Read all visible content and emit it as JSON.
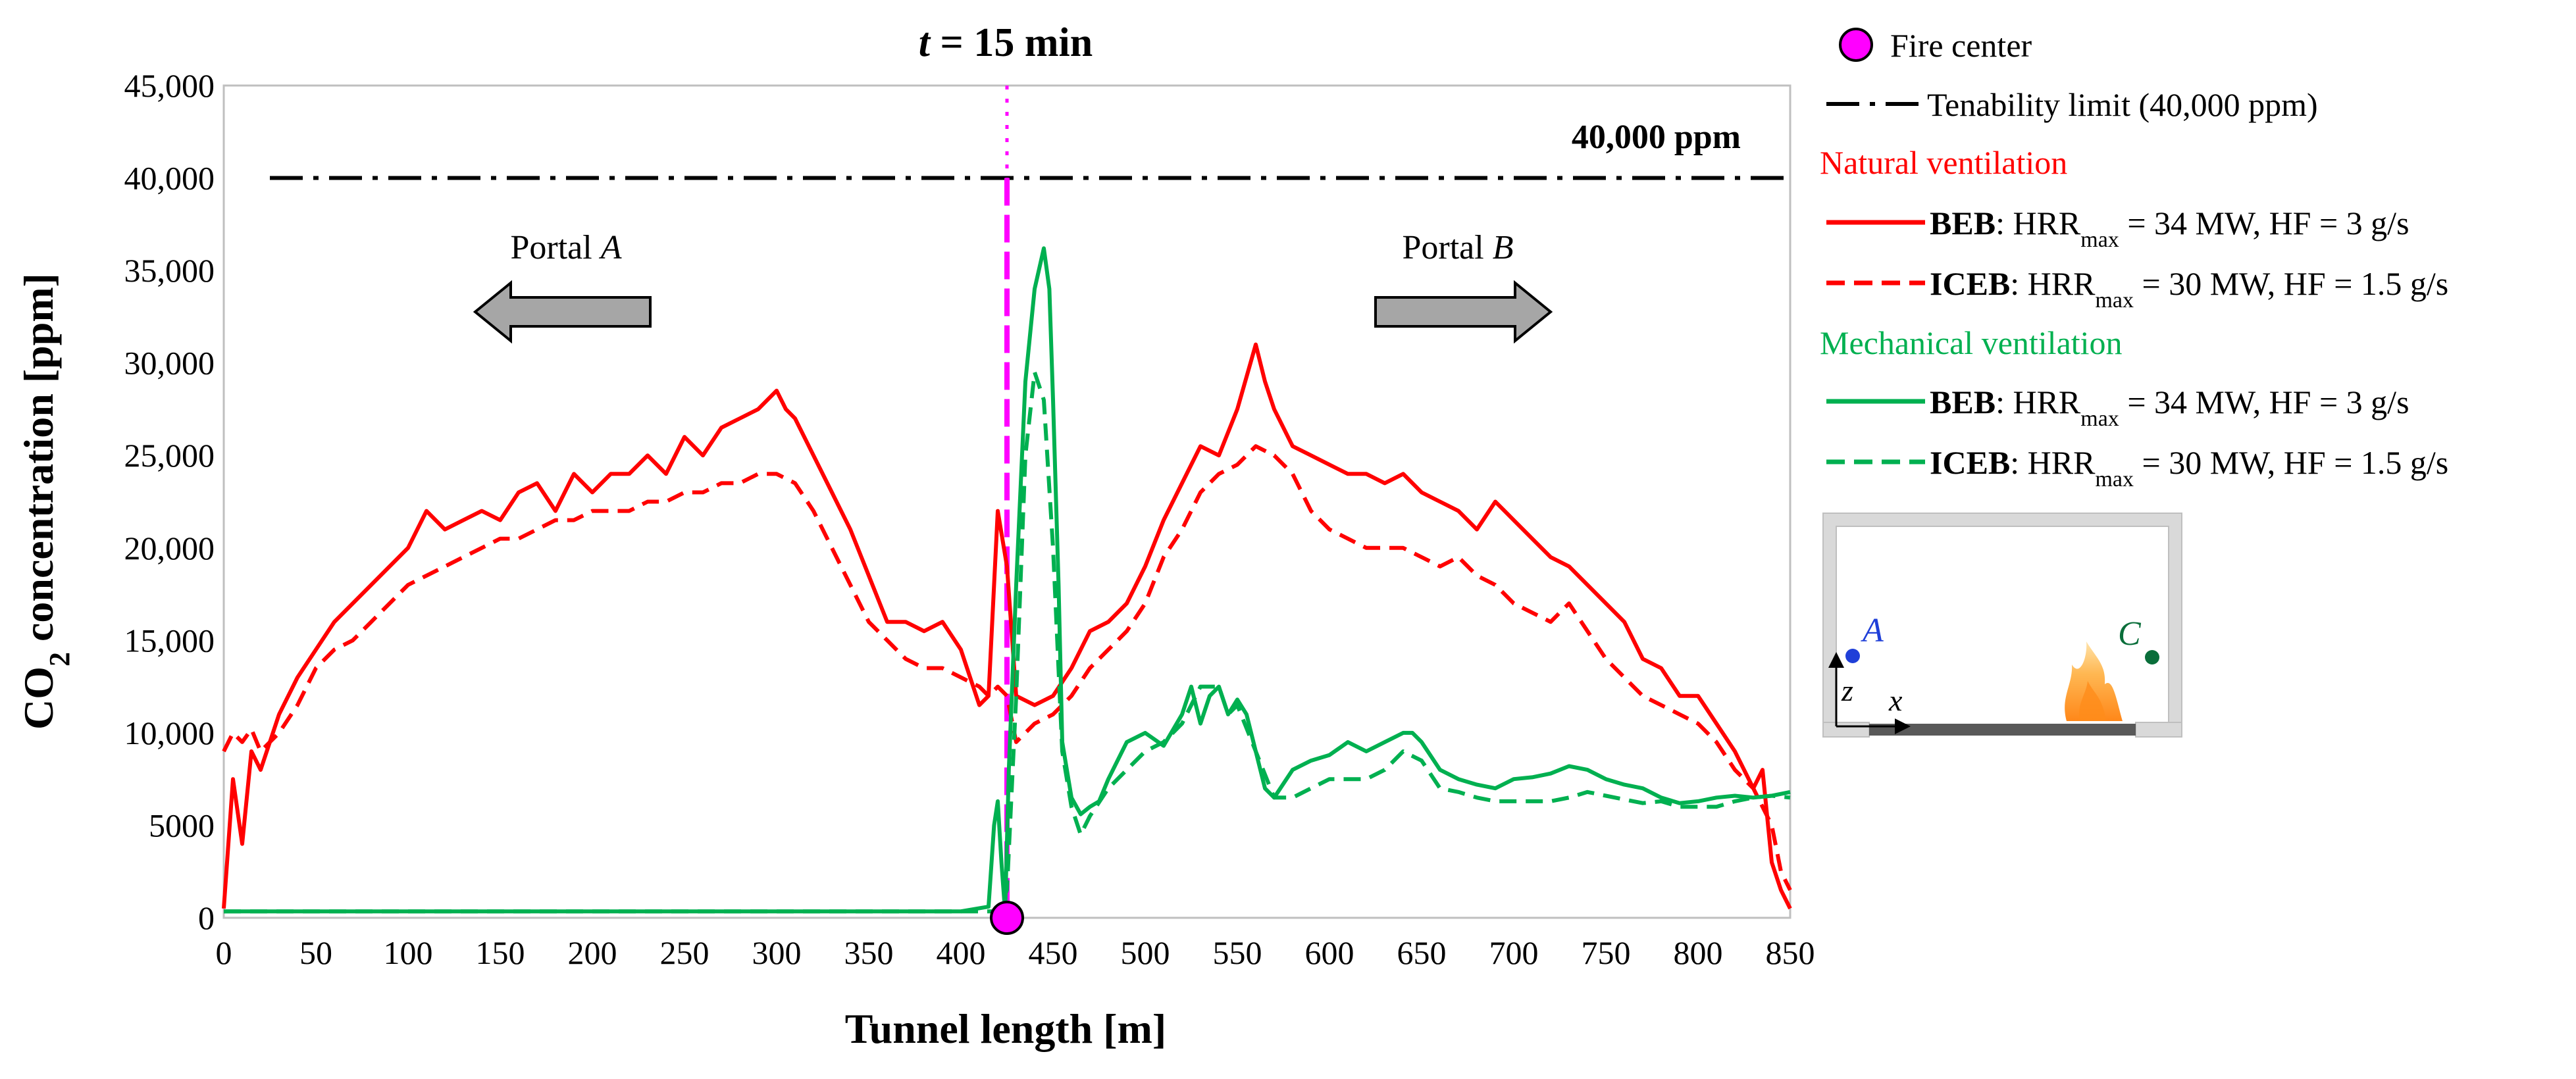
{
  "chart_data": {
    "type": "line",
    "title_var": "t",
    "title_rest": " = 15 min",
    "xlabel": "Tunnel length [m]",
    "ylabel_pre": "CO",
    "ylabel_sub": "2",
    "ylabel_post": " concentration [ppm]",
    "xlim": [
      0,
      850
    ],
    "ylim": [
      0,
      45000
    ],
    "x_ticks": [
      "0",
      "50",
      "100",
      "150",
      "200",
      "250",
      "300",
      "350",
      "400",
      "450",
      "500",
      "550",
      "600",
      "650",
      "700",
      "750",
      "800",
      "850"
    ],
    "y_ticks": [
      "0",
      "5000",
      "10,000",
      "15,000",
      "20,000",
      "25,000",
      "30,000",
      "35,000",
      "40,000",
      "45,000"
    ],
    "fire_center_x": 425,
    "tenability_limit": 40000,
    "tenability_label": "40,000 ppm",
    "portal_a": "Portal A",
    "portal_b": "Portal B",
    "portal_a_text": "Portal ",
    "portal_a_letter": "A",
    "portal_b_text": "Portal ",
    "portal_b_letter": "B",
    "colors": {
      "natural": "#ff0000",
      "mechanical": "#00b050",
      "fire": "#ff00ff",
      "limit": "#000000"
    },
    "series": [
      {
        "name": "Natural ventilation - BEB: HRRmax = 34 MW, HF = 3 g/s",
        "color": "#ff0000",
        "dash": "solid",
        "x": [
          0,
          5,
          10,
          15,
          20,
          30,
          40,
          50,
          60,
          70,
          80,
          90,
          100,
          110,
          120,
          130,
          140,
          150,
          160,
          170,
          180,
          190,
          200,
          210,
          220,
          230,
          240,
          250,
          260,
          270,
          280,
          290,
          300,
          305,
          310,
          320,
          330,
          340,
          350,
          360,
          370,
          380,
          390,
          400,
          405,
          410,
          415,
          420,
          425,
          430,
          440,
          450,
          460,
          470,
          480,
          490,
          500,
          510,
          520,
          530,
          540,
          550,
          560,
          565,
          570,
          580,
          590,
          600,
          610,
          620,
          630,
          640,
          650,
          660,
          670,
          680,
          690,
          700,
          710,
          720,
          730,
          740,
          750,
          760,
          770,
          780,
          790,
          800,
          810,
          820,
          830,
          835,
          840,
          845,
          850
        ],
        "y": [
          500,
          7500,
          4000,
          9000,
          8000,
          11000,
          13000,
          14500,
          16000,
          17000,
          18000,
          19000,
          20000,
          22000,
          21000,
          21500,
          22000,
          21500,
          23000,
          23500,
          22000,
          24000,
          23000,
          24000,
          24000,
          25000,
          24000,
          26000,
          25000,
          26500,
          27000,
          27500,
          28500,
          27500,
          27000,
          25000,
          23000,
          21000,
          18500,
          16000,
          16000,
          15500,
          16000,
          14500,
          13000,
          11500,
          12000,
          22000,
          19000,
          12000,
          11500,
          12000,
          13500,
          15500,
          16000,
          17000,
          19000,
          21500,
          23500,
          25500,
          25000,
          27500,
          31000,
          29000,
          27500,
          25500,
          25000,
          24500,
          24000,
          24000,
          23500,
          24000,
          23000,
          22500,
          22000,
          21000,
          22500,
          21500,
          20500,
          19500,
          19000,
          18000,
          17000,
          16000,
          14000,
          13500,
          12000,
          12000,
          10500,
          9000,
          7000,
          8000,
          3000,
          1500,
          500
        ]
      },
      {
        "name": "Natural ventilation - ICEB: HRRmax = 30 MW, HF = 1.5 g/s",
        "color": "#ff0000",
        "dash": "dashed",
        "x": [
          0,
          5,
          10,
          15,
          20,
          30,
          40,
          50,
          60,
          70,
          80,
          90,
          100,
          110,
          120,
          130,
          140,
          150,
          160,
          170,
          180,
          190,
          200,
          210,
          220,
          230,
          240,
          250,
          260,
          270,
          280,
          290,
          300,
          310,
          320,
          330,
          340,
          350,
          360,
          370,
          380,
          390,
          400,
          410,
          415,
          420,
          425,
          430,
          440,
          450,
          460,
          470,
          480,
          490,
          500,
          510,
          520,
          530,
          540,
          550,
          560,
          570,
          580,
          590,
          600,
          610,
          620,
          630,
          640,
          650,
          660,
          670,
          680,
          690,
          700,
          710,
          720,
          730,
          740,
          750,
          760,
          770,
          780,
          790,
          800,
          810,
          820,
          830,
          840,
          845,
          850
        ],
        "y": [
          9000,
          10000,
          9500,
          10200,
          9000,
          10000,
          11500,
          13500,
          14500,
          15000,
          16000,
          17000,
          18000,
          18500,
          19000,
          19500,
          20000,
          20500,
          20500,
          21000,
          21500,
          21500,
          22000,
          22000,
          22000,
          22500,
          22500,
          23000,
          23000,
          23500,
          23500,
          24000,
          24000,
          23500,
          22000,
          20000,
          18000,
          16000,
          15000,
          14000,
          13500,
          13500,
          13000,
          12500,
          12000,
          12500,
          12000,
          9500,
          10500,
          11000,
          12000,
          13500,
          14500,
          15500,
          17000,
          19500,
          21000,
          23000,
          24000,
          24500,
          25500,
          25000,
          24000,
          22000,
          21000,
          20500,
          20000,
          20000,
          20000,
          19500,
          19000,
          19500,
          18500,
          18000,
          17000,
          16500,
          16000,
          17000,
          15500,
          14000,
          13000,
          12000,
          11500,
          11000,
          10500,
          9500,
          8000,
          7000,
          5000,
          2500,
          1500
        ]
      },
      {
        "name": "Mechanical ventilation - BEB: HRRmax = 34 MW, HF = 3 g/s",
        "color": "#00b050",
        "dash": "solid",
        "x": [
          0,
          100,
          200,
          300,
          400,
          415,
          418,
          420,
          422,
          424,
          426,
          430,
          435,
          440,
          445,
          448,
          450,
          453,
          455,
          460,
          465,
          470,
          475,
          480,
          490,
          500,
          510,
          520,
          525,
          530,
          535,
          540,
          545,
          550,
          555,
          560,
          565,
          570,
          580,
          590,
          600,
          610,
          620,
          630,
          640,
          645,
          650,
          660,
          670,
          680,
          690,
          700,
          710,
          720,
          730,
          740,
          750,
          760,
          770,
          780,
          790,
          800,
          810,
          820,
          830,
          840,
          850
        ],
        "y": [
          350,
          350,
          350,
          350,
          350,
          600,
          5000,
          6300,
          3000,
          300,
          8000,
          18000,
          29000,
          34000,
          36200,
          34000,
          28000,
          18000,
          9500,
          6500,
          5600,
          6000,
          6300,
          7500,
          9500,
          10000,
          9300,
          11000,
          12500,
          10500,
          12000,
          12500,
          11000,
          11800,
          11000,
          9000,
          7000,
          6500,
          8000,
          8500,
          8800,
          9500,
          9000,
          9500,
          10000,
          10000,
          9500,
          8000,
          7500,
          7200,
          7000,
          7500,
          7600,
          7800,
          8200,
          8000,
          7500,
          7200,
          7000,
          6500,
          6200,
          6300,
          6500,
          6600,
          6500,
          6600,
          6800
        ]
      },
      {
        "name": "Mechanical ventilation - ICEB: HRRmax = 30 MW, HF = 1.5 g/s",
        "color": "#00b050",
        "dash": "dashed",
        "x": [
          0,
          100,
          200,
          300,
          400,
          420,
          425,
          430,
          435,
          440,
          445,
          450,
          455,
          460,
          465,
          470,
          480,
          490,
          500,
          510,
          520,
          530,
          540,
          545,
          550,
          560,
          570,
          580,
          590,
          600,
          610,
          620,
          630,
          640,
          650,
          660,
          670,
          680,
          690,
          700,
          710,
          720,
          730,
          740,
          750,
          760,
          770,
          780,
          790,
          800,
          810,
          820,
          830,
          840,
          850
        ],
        "y": [
          350,
          350,
          350,
          350,
          350,
          350,
          1500,
          12000,
          25000,
          29500,
          28000,
          20000,
          9000,
          6000,
          4500,
          5500,
          7000,
          8000,
          9000,
          9500,
          10500,
          12500,
          12500,
          11000,
          11500,
          9000,
          6500,
          6500,
          7000,
          7500,
          7500,
          7500,
          8000,
          9000,
          8500,
          7000,
          6800,
          6500,
          6300,
          6300,
          6300,
          6300,
          6500,
          6800,
          6600,
          6400,
          6200,
          6300,
          6000,
          6000,
          6000,
          6300,
          6500,
          6600,
          6500
        ]
      }
    ]
  },
  "legend": {
    "fire_center": "Fire center",
    "tenability": "Tenability limit (40,000 ppm)",
    "natural_heading": "Natural ventilation",
    "mechanical_heading": "Mechanical ventilation",
    "beb_name": "BEB",
    "beb_rest": ": HRR",
    "beb_sub": "max",
    "beb_tail": " = 34 MW, HF = 3 g/s",
    "iceb_name": "ICEB",
    "iceb_rest": ": HRR",
    "iceb_sub": "max",
    "iceb_tail": " = 30 MW, HF = 1.5 g/s"
  },
  "inset": {
    "point_a": "A",
    "point_c": "C",
    "axis_z": "z",
    "axis_x": "x"
  }
}
